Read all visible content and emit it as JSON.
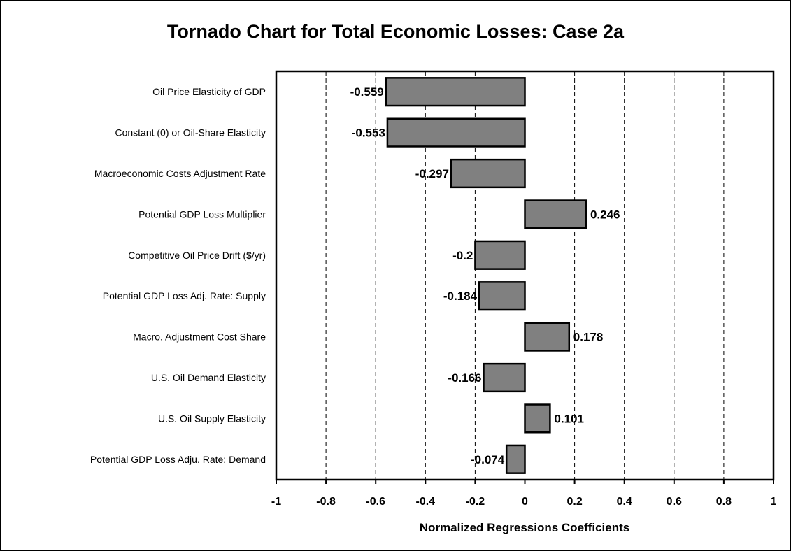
{
  "chart_data": {
    "type": "bar",
    "orientation": "horizontal",
    "title": "Tornado Chart for Total Economic Losses: Case 2a",
    "xlabel": "Normalized Regressions Coefficients",
    "ylabel": "",
    "xlim": [
      -1,
      1
    ],
    "x_ticks": [
      "-1",
      "-0.8",
      "-0.6",
      "-0.4",
      "-0.2",
      "0",
      "0.2",
      "0.4",
      "0.6",
      "0.8",
      "1"
    ],
    "x_tick_values": [
      -1,
      -0.8,
      -0.6,
      -0.4,
      -0.2,
      0,
      0.2,
      0.4,
      0.6,
      0.8,
      1
    ],
    "grid": "vertical dashed",
    "legend": "none",
    "bar_color": "#808080",
    "categories": [
      "Oil Price Elasticity of GDP",
      "Constant (0) or Oil-Share Elasticity",
      "Macroeconomic Costs Adjustment Rate",
      "Potential GDP Loss Multiplier",
      "Competitive Oil Price Drift ($/yr)",
      "Potential GDP Loss Adj. Rate: Supply",
      "Macro. Adjustment Cost Share",
      "U.S. Oil Demand Elasticity",
      "U.S. Oil Supply Elasticity",
      "Potential GDP Loss Adju. Rate: Demand"
    ],
    "values": [
      -0.559,
      -0.553,
      -0.297,
      0.246,
      -0.2,
      -0.184,
      0.178,
      -0.166,
      0.101,
      -0.074
    ],
    "value_labels": [
      "-0.559",
      "-0.553",
      "-0.297",
      "0.246",
      "-0.2",
      "-0.184",
      "0.178",
      "-0.166",
      "0.101",
      "-0.074"
    ]
  }
}
